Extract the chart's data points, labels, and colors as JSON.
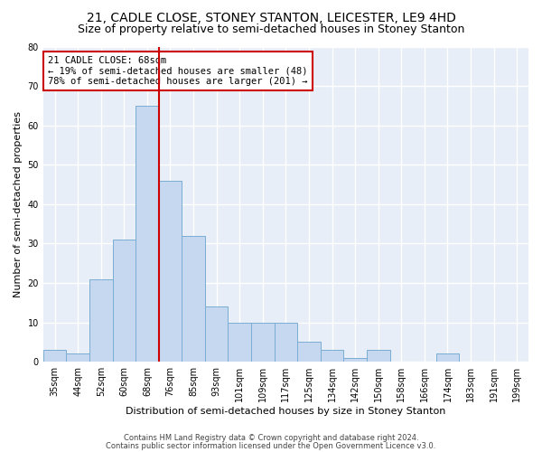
{
  "title": "21, CADLE CLOSE, STONEY STANTON, LEICESTER, LE9 4HD",
  "subtitle": "Size of property relative to semi-detached houses in Stoney Stanton",
  "xlabel": "Distribution of semi-detached houses by size in Stoney Stanton",
  "ylabel": "Number of semi-detached properties",
  "categories": [
    "35sqm",
    "44sqm",
    "52sqm",
    "60sqm",
    "68sqm",
    "76sqm",
    "85sqm",
    "93sqm",
    "101sqm",
    "109sqm",
    "117sqm",
    "125sqm",
    "134sqm",
    "142sqm",
    "150sqm",
    "158sqm",
    "166sqm",
    "174sqm",
    "183sqm",
    "191sqm",
    "199sqm"
  ],
  "values": [
    3,
    2,
    21,
    31,
    65,
    46,
    32,
    14,
    10,
    10,
    10,
    5,
    3,
    1,
    3,
    0,
    0,
    2,
    0,
    0,
    0
  ],
  "bar_color": "#c5d8f0",
  "bar_edge_color": "#7aadd4",
  "ylim": [
    0,
    80
  ],
  "yticks": [
    0,
    10,
    20,
    30,
    40,
    50,
    60,
    70,
    80
  ],
  "annotation_text": "21 CADLE CLOSE: 68sqm\n← 19% of semi-detached houses are smaller (48)\n78% of semi-detached houses are larger (201) →",
  "footer1": "Contains HM Land Registry data © Crown copyright and database right 2024.",
  "footer2": "Contains public sector information licensed under the Open Government Licence v3.0.",
  "fig_facecolor": "#ffffff",
  "axes_facecolor": "#e8eef7",
  "grid_color": "#ffffff",
  "annotation_box_color": "#ffffff",
  "annotation_box_edge": "#cc0000",
  "vline_color": "#cc0000",
  "vline_x": 4.5,
  "title_fontsize": 10,
  "subtitle_fontsize": 9,
  "ylabel_fontsize": 8,
  "xlabel_fontsize": 8,
  "tick_fontsize": 7,
  "annotation_fontsize": 7.5,
  "footer_fontsize": 6
}
